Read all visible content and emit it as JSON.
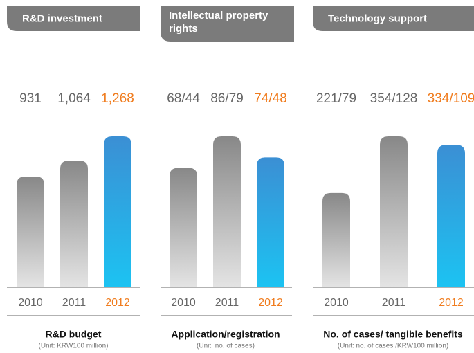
{
  "chart_data": [
    {
      "type": "bar",
      "title": "R&D investment",
      "caption": "R&D budget",
      "unit": "(Unit: KRW100 million)",
      "categories": [
        "2010",
        "2011",
        "2012"
      ],
      "values": [
        931,
        1064,
        1268
      ],
      "value_labels": [
        "931",
        "1,064",
        "1,268"
      ],
      "bar_colors": [
        [
          "#888888",
          "#e4e4e4"
        ],
        [
          "#888888",
          "#e4e4e4"
        ],
        [
          "#3b8fd4",
          "#1cc3f2"
        ]
      ],
      "label_colors": [
        "#666666",
        "#666666",
        "#f07c1e"
      ]
    },
    {
      "type": "bar",
      "title": [
        "Intellectual property",
        "rights"
      ],
      "caption": "Application/registration",
      "unit": "(Unit: no. of cases)",
      "categories": [
        "2010",
        "2011",
        "2012"
      ],
      "values": [
        68,
        86,
        74
      ],
      "value_labels": [
        "68/44",
        "86/79",
        "74/48"
      ],
      "bar_colors": [
        [
          "#888888",
          "#e4e4e4"
        ],
        [
          "#888888",
          "#e4e4e4"
        ],
        [
          "#3b8fd4",
          "#1cc3f2"
        ]
      ],
      "label_colors": [
        "#666666",
        "#666666",
        "#f07c1e"
      ]
    },
    {
      "type": "bar",
      "title": "Technology support",
      "caption": "No. of cases/ tangible benefits",
      "unit": "(Unit: no. of cases /KRW100 million)",
      "categories": [
        "2010",
        "2011",
        "2012"
      ],
      "values": [
        221,
        354,
        334
      ],
      "value_labels": [
        "221/79",
        "354/128",
        "334/109"
      ],
      "bar_colors": [
        [
          "#888888",
          "#e4e4e4"
        ],
        [
          "#888888",
          "#e4e4e4"
        ],
        [
          "#3b8fd4",
          "#1cc3f2"
        ]
      ],
      "label_colors": [
        "#666666",
        "#666666",
        "#f07c1e"
      ]
    }
  ]
}
